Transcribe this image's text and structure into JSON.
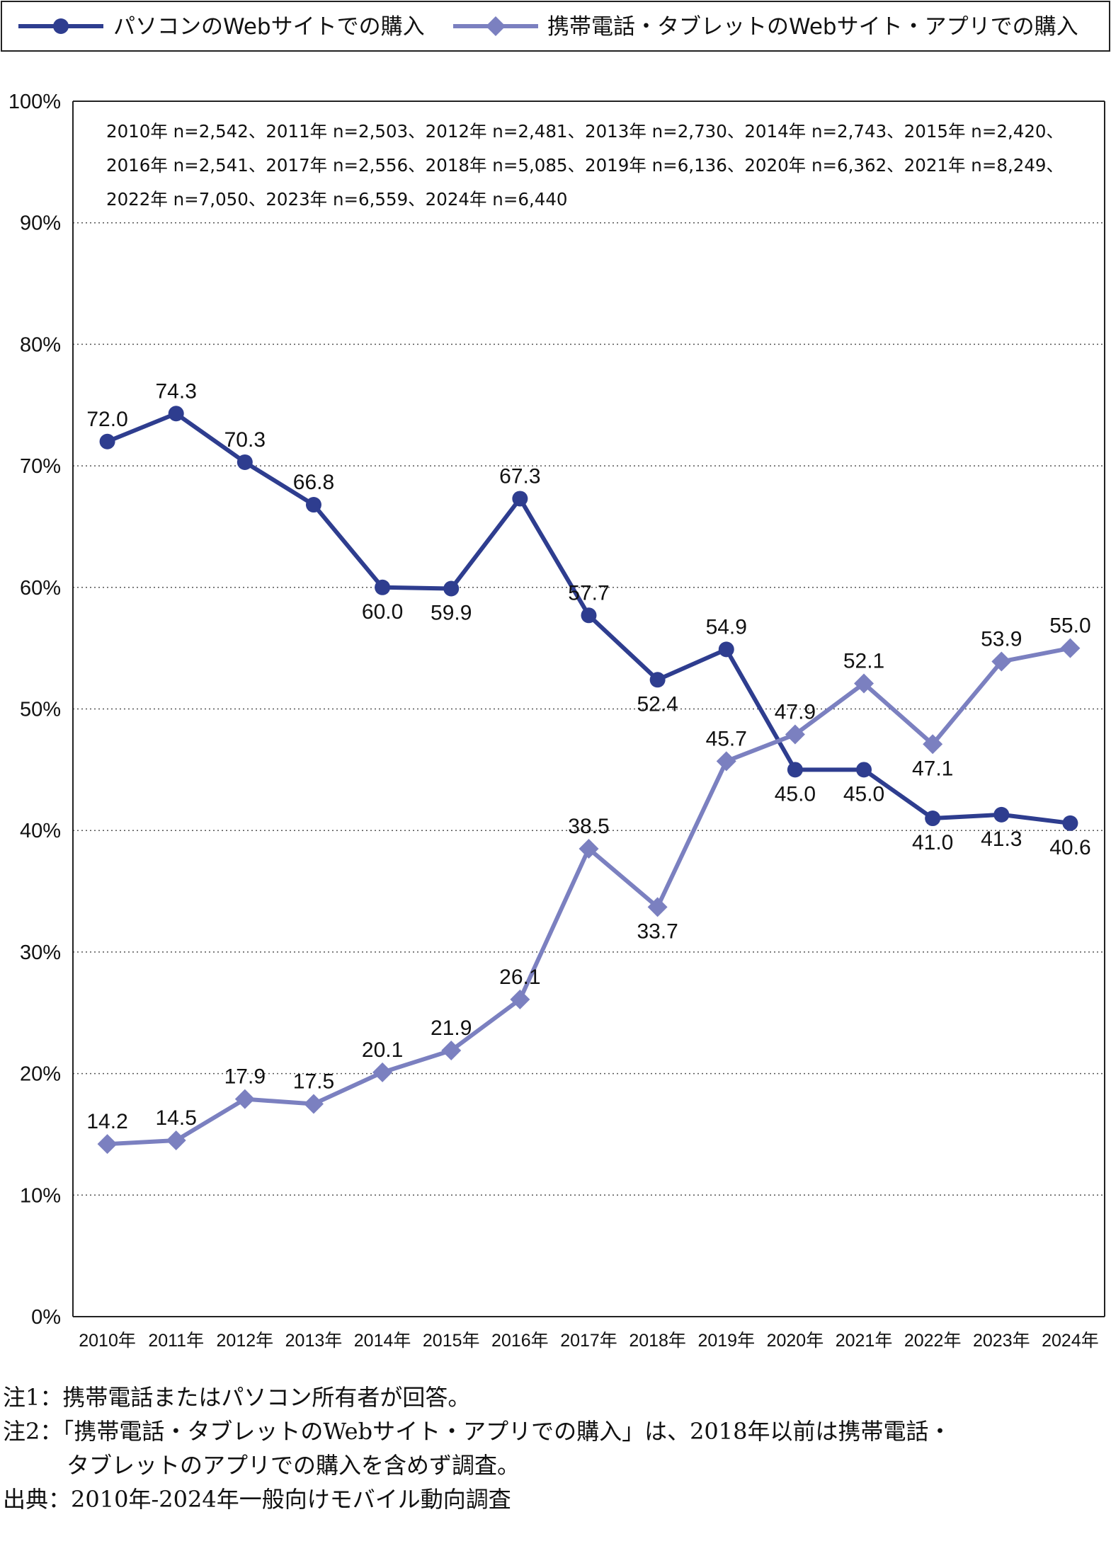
{
  "chart_data": {
    "type": "line",
    "categories": [
      "2010年",
      "2011年",
      "2012年",
      "2013年",
      "2014年",
      "2015年",
      "2016年",
      "2017年",
      "2018年",
      "2019年",
      "2020年",
      "2021年",
      "2022年",
      "2023年",
      "2024年"
    ],
    "series": [
      {
        "name": "パソコンのWebサイトでの購入",
        "color": "#2e3d8f",
        "marker": "circle",
        "values": [
          72.0,
          74.3,
          70.3,
          66.8,
          60.0,
          59.9,
          67.3,
          57.7,
          52.4,
          54.9,
          45.0,
          45.0,
          41.0,
          41.3,
          40.6
        ]
      },
      {
        "name": "携帯電話・タブレットのWebサイト・アプリでの購入",
        "color": "#7b80c0",
        "marker": "diamond",
        "values": [
          14.2,
          14.5,
          17.9,
          17.5,
          20.1,
          21.9,
          26.1,
          38.5,
          33.7,
          45.7,
          47.9,
          52.1,
          47.1,
          53.9,
          55.0
        ]
      }
    ],
    "y_ticks": [
      "0%",
      "10%",
      "20%",
      "30%",
      "40%",
      "50%",
      "60%",
      "70%",
      "80%",
      "90%",
      "100%"
    ],
    "ylim": [
      0,
      100
    ],
    "grid": "horizontal dotted",
    "legend_position": "top",
    "sample_sizes": [
      "2010年 n=2,542、2011年 n=2,503、2012年 n=2,481、2013年 n=2,730、2014年 n=2,743、2015年 n=2,420、",
      "2016年 n=2,541、2017年 n=2,556、2018年 n=5,085、2019年 n=6,136、2020年 n=6,362、2021年 n=8,249、",
      "2022年 n=7,050、2023年 n=6,559、2024年 n=6,440"
    ]
  },
  "notes": {
    "note1": "注1：携帯電話またはパソコン所有者が回答。",
    "note2_line1": "注2：「携帯電話・タブレットのWebサイト・アプリでの購入」は、2018年以前は携帯電話・",
    "note2_line2": "タブレットのアプリでの購入を含めず調査。",
    "source": "出典：2010年-2024年一般向けモバイル動向調査"
  }
}
